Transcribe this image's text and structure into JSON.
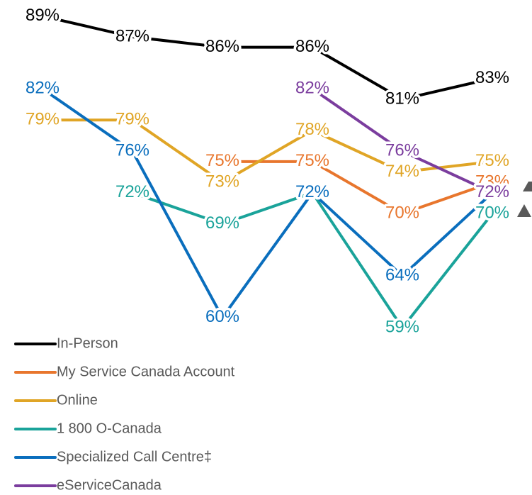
{
  "chart_data": {
    "type": "line",
    "categories": [
      null,
      null,
      null,
      null,
      null,
      null
    ],
    "ylim": [
      58,
      90
    ],
    "series": [
      {
        "name": "In-Person",
        "color": "#000000",
        "values": [
          89,
          87,
          86,
          86,
          81,
          83
        ],
        "value_labels": [
          "89%",
          "87%",
          "86%",
          "86%",
          "81%",
          "83%"
        ]
      },
      {
        "name": "My Service Canada Account",
        "color": "#e8762d",
        "values": [
          null,
          null,
          75,
          75,
          70,
          73
        ],
        "value_labels": [
          null,
          null,
          "75%",
          "75%",
          "70%",
          "73%"
        ]
      },
      {
        "name": "Online",
        "color": "#e0a526",
        "values": [
          79,
          79,
          73,
          78,
          74,
          75
        ],
        "value_labels": [
          "79%",
          "79%",
          "73%",
          "78%",
          "74%",
          "75%"
        ]
      },
      {
        "name": "1 800 O-Canada",
        "color": "#1aa39a",
        "values": [
          null,
          72,
          69,
          72,
          59,
          70
        ],
        "value_labels": [
          null,
          "72%",
          "69%",
          "72%",
          "59%",
          "70%"
        ]
      },
      {
        "name": "Specialized Call Centre‡",
        "color": "#0a6ebd",
        "values": [
          82,
          76,
          60,
          72,
          64,
          72
        ],
        "value_labels": [
          "82%",
          "76%",
          "60%",
          "72%",
          "64%",
          "72%"
        ]
      },
      {
        "name": "eServiceCanada",
        "color": "#7b3d9e",
        "values": [
          null,
          null,
          null,
          82,
          76,
          72
        ],
        "value_labels": [
          null,
          null,
          null,
          "82%",
          "76%",
          "72%"
        ]
      }
    ]
  }
}
